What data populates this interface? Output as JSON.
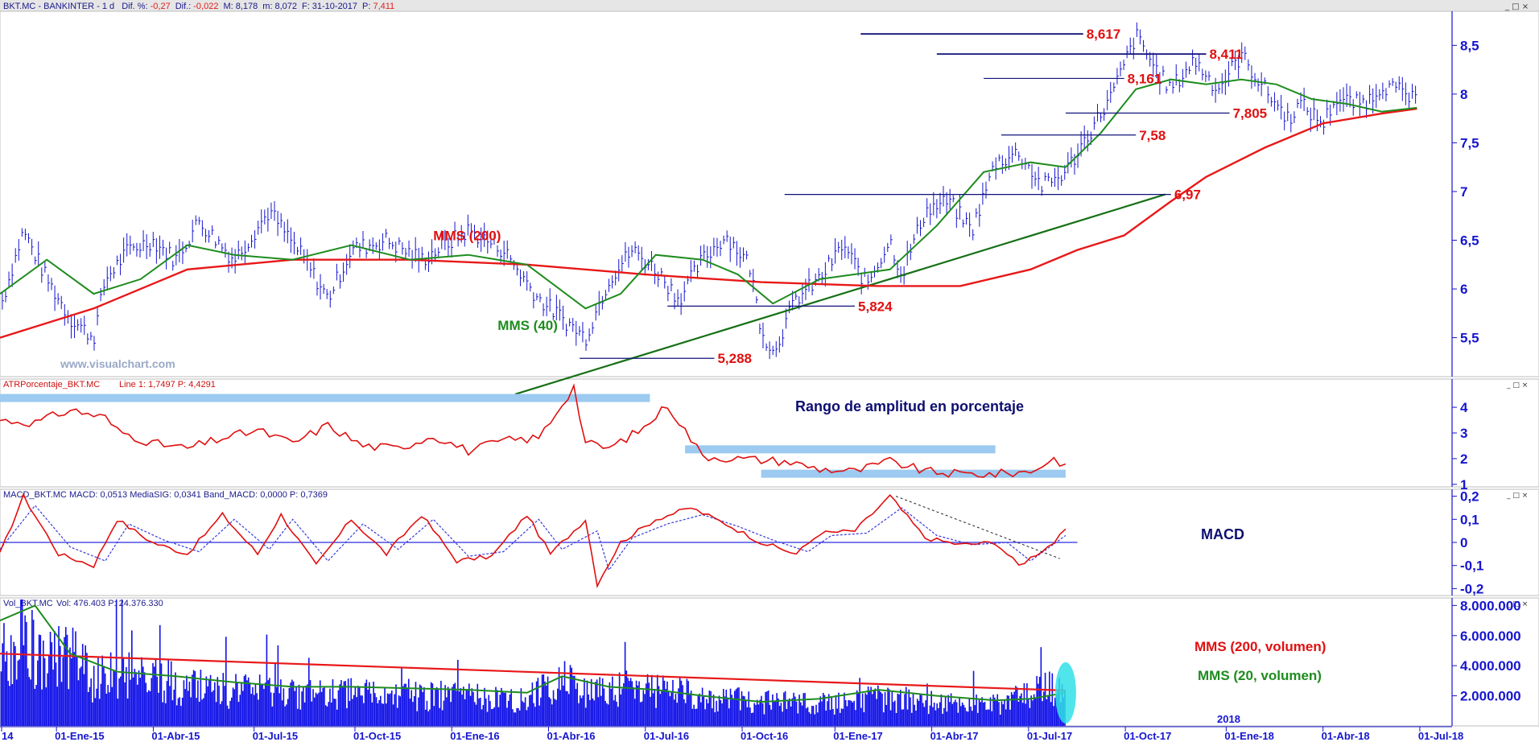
{
  "header": {
    "symbol": "BKT.MC - BANKINTER - 1 d",
    "items": [
      {
        "label": "Dif. %:",
        "value": "-0,27",
        "value_color": "#e02020"
      },
      {
        "label": "Dif.:",
        "value": "-0,022",
        "value_color": "#e02020"
      },
      {
        "label": "M:",
        "value": "8,178",
        "value_color": "#1a1a8c"
      },
      {
        "label": "m:",
        "value": "8,072",
        "value_color": "#1a1a8c"
      },
      {
        "label": "F:",
        "value": "31-10-2017",
        "value_color": "#1a1a8c"
      },
      {
        "label": "P:",
        "value": "7,411",
        "value_color": "#e02020"
      }
    ]
  },
  "window_buttons": "_ □ ×",
  "watermark": "www.visualchart.com",
  "colors": {
    "price": "#1515d0",
    "mms40": "#1e8c1e",
    "mms200": "#e81818",
    "level": "#10107a",
    "label_red": "#e01010",
    "axis": "#1515d0",
    "atr_band": "#9ccaf0",
    "volume": "#0f0fe8",
    "trend": "#157015"
  },
  "chart_data": [
    {
      "type": "line",
      "panel": "price",
      "y_ticks": [
        "8,5",
        "8",
        "7,5",
        "7",
        "6,5",
        "6",
        "5,5"
      ],
      "ylim": [
        5.1,
        8.85
      ],
      "series": [
        {
          "name": "MMS (200)",
          "role": "mms200",
          "x": [
            0,
            8,
            16,
            25,
            35,
            45,
            55,
            65,
            75,
            82,
            88,
            92,
            96,
            100,
            103,
            108,
            113,
            118,
            121
          ],
          "values": [
            5.5,
            5.8,
            6.2,
            6.3,
            6.3,
            6.25,
            6.15,
            6.07,
            6.03,
            6.03,
            6.2,
            6.4,
            6.55,
            6.9,
            7.15,
            7.45,
            7.7,
            7.8,
            7.85
          ]
        },
        {
          "name": "MMS (40)",
          "role": "mms40",
          "x": [
            0,
            4,
            8,
            12,
            16,
            20,
            25,
            30,
            35,
            40,
            45,
            50,
            53,
            56,
            60,
            63,
            66,
            70,
            73,
            76,
            80,
            84,
            88,
            91,
            94,
            97,
            100,
            103,
            106,
            109,
            112,
            115,
            118,
            121
          ],
          "values": [
            5.95,
            6.3,
            5.95,
            6.1,
            6.45,
            6.35,
            6.3,
            6.45,
            6.3,
            6.35,
            6.25,
            5.8,
            5.95,
            6.35,
            6.3,
            6.15,
            5.85,
            6.1,
            6.15,
            6.2,
            6.65,
            7.2,
            7.3,
            7.25,
            7.6,
            8.05,
            8.15,
            8.1,
            8.15,
            8.1,
            7.95,
            7.9,
            7.82,
            7.86
          ]
        },
        {
          "name": "BKT.MC",
          "role": "price",
          "x": [
            0,
            2,
            4,
            6,
            8,
            9,
            11,
            13,
            15,
            17,
            20,
            23,
            26,
            28,
            30,
            33,
            36,
            40,
            43,
            46,
            48,
            50,
            52,
            54,
            56,
            58,
            60,
            62,
            64,
            65,
            66,
            68,
            70,
            72,
            74,
            76,
            77,
            79,
            81,
            83,
            85,
            87,
            89,
            91,
            93,
            95,
            97,
            99,
            100,
            102,
            104,
            106,
            108,
            110,
            111,
            113,
            114,
            116,
            117,
            118,
            120,
            121
          ],
          "values": [
            5.8,
            6.6,
            6.1,
            5.7,
            5.5,
            6.1,
            6.4,
            6.5,
            6.3,
            6.7,
            6.3,
            6.8,
            6.3,
            5.9,
            6.4,
            6.5,
            6.3,
            6.6,
            6.4,
            5.9,
            5.7,
            5.5,
            6.1,
            6.4,
            6.2,
            5.9,
            6.3,
            6.55,
            6.25,
            5.6,
            5.35,
            5.9,
            6.1,
            6.45,
            6.05,
            6.5,
            6.15,
            6.8,
            6.9,
            6.6,
            7.3,
            7.4,
            7.05,
            7.2,
            7.6,
            8.0,
            8.6,
            8.2,
            8.05,
            8.35,
            8.05,
            8.4,
            8.05,
            7.75,
            7.9,
            7.7,
            7.95,
            7.9,
            7.95,
            8.1,
            8.0,
            7.9
          ]
        },
        {
          "name": "",
          "role": "trendline",
          "x": [
            44,
            99.5
          ],
          "values": [
            4.92,
            6.97
          ]
        }
      ],
      "levels": [
        {
          "label": "8,617",
          "value": 8.617,
          "x_start": 73.5,
          "x_end": 92.5
        },
        {
          "label": "8,411",
          "value": 8.411,
          "x_start": 80,
          "x_end": 103
        },
        {
          "label": "8,161",
          "value": 8.161,
          "x_start": 84,
          "x_end": 96
        },
        {
          "label": "7,805",
          "value": 7.805,
          "x_start": 91,
          "x_end": 105
        },
        {
          "label": "7,58",
          "value": 7.58,
          "x_start": 85.5,
          "x_end": 97
        },
        {
          "label": "6,97",
          "value": 6.97,
          "x_start": 67,
          "x_end": 100
        },
        {
          "label": "5,824",
          "value": 5.824,
          "x_start": 57,
          "x_end": 73
        },
        {
          "label": "5,288",
          "value": 5.288,
          "x_start": 49.5,
          "x_end": 61
        }
      ],
      "annotations": [
        {
          "text": "MMS (200)",
          "color": "#e01010",
          "x": 37,
          "y": 6.5
        },
        {
          "text": "MMS (40)",
          "color": "#1e8c1e",
          "x": 42.5,
          "y": 5.58
        }
      ]
    },
    {
      "type": "line",
      "panel": "atr",
      "title": "ATRPorcentaje_BKT.MC",
      "title_values": "Line 1: 1,7497  P: 4,4291",
      "y_ticks": [
        "4",
        "3",
        "2",
        "1"
      ],
      "ylim": [
        0.9,
        5.1
      ],
      "annotation": "Rango de amplitud en porcentaje",
      "bands": [
        {
          "x_start": 0,
          "x_end": 55.5,
          "value": 4.3
        },
        {
          "x_start": 58.5,
          "x_end": 85,
          "value": 2.3
        },
        {
          "x_start": 65,
          "x_end": 91,
          "value": 1.35
        }
      ],
      "series": [
        {
          "name": "",
          "role": "atr",
          "x": [
            0,
            3,
            6,
            9,
            10,
            13,
            16,
            19,
            22,
            25,
            28,
            31,
            34,
            37,
            40,
            43,
            46,
            49,
            50,
            52,
            55,
            57,
            60,
            63,
            67,
            70,
            73,
            76,
            79,
            82,
            85,
            88,
            90,
            91
          ],
          "values": [
            3.5,
            3.4,
            3.9,
            3.6,
            3.1,
            2.6,
            2.4,
            2.8,
            3.1,
            2.6,
            3.3,
            2.5,
            2.4,
            2.9,
            2.3,
            2.7,
            2.8,
            4.8,
            2.6,
            2.4,
            3.2,
            4.1,
            2.1,
            2.0,
            1.9,
            1.6,
            1.5,
            1.9,
            1.5,
            1.4,
            1.4,
            1.5,
            2.0,
            1.75
          ]
        }
      ]
    },
    {
      "type": "line",
      "panel": "macd",
      "title": "MACD_BKT.MC",
      "title_values": "MACD: 0,0513  MediaSIG: 0,0341  Band_MACD: 0,0000  P: 0,7369",
      "y_ticks": [
        "0,2",
        "0,1",
        "0",
        "-0,1",
        "-0,2"
      ],
      "ylim": [
        -0.23,
        0.23
      ],
      "annotation": "MACD",
      "series": [
        {
          "name": "MACD",
          "role": "macd",
          "x": [
            0,
            2,
            5,
            8,
            10,
            13,
            16,
            19,
            22,
            24,
            27,
            30,
            33,
            36,
            39,
            42,
            45,
            47,
            50,
            51,
            53,
            56,
            59,
            62,
            65,
            68,
            70,
            73,
            76,
            79,
            82,
            85,
            87,
            90,
            91
          ],
          "values": [
            -0.05,
            0.2,
            -0.05,
            -0.1,
            0.1,
            0.0,
            -0.05,
            0.12,
            -0.05,
            0.12,
            -0.1,
            0.1,
            -0.05,
            0.12,
            -0.08,
            -0.06,
            0.12,
            -0.05,
            0.1,
            -0.18,
            0.0,
            0.1,
            0.15,
            0.08,
            0.0,
            -0.05,
            0.04,
            0.05,
            0.2,
            0.02,
            -0.01,
            0.0,
            -0.1,
            0.0,
            0.05
          ]
        },
        {
          "name": "MediaSIG",
          "role": "signal",
          "x": [
            0,
            3,
            6,
            9,
            11,
            14,
            17,
            20,
            23,
            25,
            28,
            31,
            34,
            37,
            40,
            43,
            46,
            48,
            51,
            52,
            54,
            57,
            60,
            63,
            66,
            69,
            71,
            74,
            77,
            80,
            83,
            86,
            88,
            91
          ],
          "values": [
            -0.03,
            0.16,
            -0.02,
            -0.08,
            0.08,
            0.01,
            -0.04,
            0.1,
            -0.03,
            0.1,
            -0.08,
            0.08,
            -0.03,
            0.1,
            -0.06,
            -0.04,
            0.1,
            -0.03,
            0.05,
            -0.12,
            0.02,
            0.08,
            0.12,
            0.07,
            0.01,
            -0.04,
            0.03,
            0.04,
            0.15,
            0.03,
            -0.01,
            0.0,
            -0.08,
            0.03
          ]
        },
        {
          "name": "",
          "role": "zero",
          "x": [
            0,
            92
          ],
          "values": [
            0.0,
            0.0
          ]
        },
        {
          "name": "",
          "role": "macd_trend",
          "x": [
            76.5,
            90.5
          ],
          "values": [
            0.2,
            -0.07
          ]
        }
      ]
    },
    {
      "type": "bar",
      "panel": "volume",
      "title": "Vol_BKT.MC",
      "title_values": "Vol: 476.403  P: 24.376.330",
      "y_ticks": [
        "8.000.000",
        "6.000.000",
        "4.000.000",
        "2.000.000"
      ],
      "ylim": [
        0,
        8500000
      ],
      "annotations": [
        {
          "text": "MMS (200, volumen)",
          "color": "#e01010"
        },
        {
          "text": "MMS (20, volumen)",
          "color": "#1e8c1e"
        }
      ],
      "bar_count": 184,
      "values_envelope": {
        "x": [
          0,
          2,
          4,
          6,
          8,
          10,
          13,
          16,
          20,
          25,
          30,
          35,
          40,
          45,
          48,
          50,
          55,
          60,
          65,
          70,
          75,
          80,
          85,
          90,
          91
        ],
        "values": [
          6000000,
          8000000,
          5500000,
          7000000,
          4000000,
          5000000,
          4500000,
          3500000,
          3200000,
          3000000,
          3000000,
          2800000,
          2700000,
          2500000,
          4500000,
          3000000,
          3500000,
          2600000,
          2200000,
          2000000,
          2500000,
          2200000,
          2000000,
          3500000,
          2500000
        ]
      },
      "series": [
        {
          "name": "MMS (200, volumen)",
          "role": "vol200",
          "x": [
            0,
            91
          ],
          "values": [
            4800000,
            2350000
          ]
        },
        {
          "name": "MMS (20, volumen)",
          "role": "vol20",
          "x": [
            0,
            3,
            6,
            10,
            15,
            20,
            25,
            30,
            35,
            40,
            45,
            48,
            52,
            56,
            60,
            65,
            70,
            75,
            80,
            85,
            88,
            91
          ],
          "values": [
            7000000,
            8000000,
            4800000,
            3600000,
            3300000,
            2900000,
            2600000,
            2600000,
            2500000,
            2400000,
            2200000,
            3300000,
            2600000,
            2400000,
            2000000,
            1600000,
            1800000,
            2400000,
            2000000,
            1700000,
            1800000,
            2200000
          ]
        }
      ],
      "x_ticks": [
        "14",
        "01-Ene-15",
        "01-Abr-15",
        "01-Jul-15",
        "01-Oct-15",
        "01-Ene-16",
        "01-Abr-16",
        "01-Jul-16",
        "01-Oct-16",
        "01-Ene-17",
        "01-Abr-17",
        "01-Jul-17",
        "01-Oct-17",
        "01-Ene-18",
        "01-Abr-18",
        "01-Jul-18"
      ],
      "year_label": "2018"
    }
  ]
}
